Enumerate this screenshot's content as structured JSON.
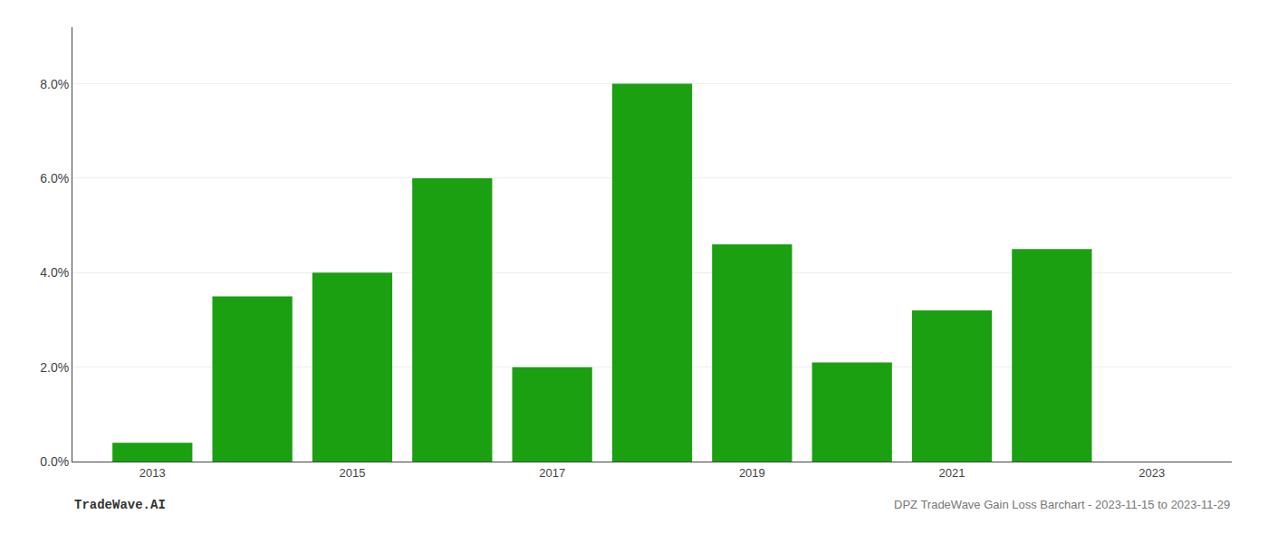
{
  "chart_data": {
    "type": "bar",
    "x": [
      2013,
      2014,
      2015,
      2016,
      2017,
      2018,
      2019,
      2020,
      2021,
      2022
    ],
    "values": [
      0.004,
      0.035,
      0.04,
      0.06,
      0.02,
      0.08,
      0.046,
      0.021,
      0.032,
      0.045
    ],
    "color": "#1aa010",
    "xlim": [
      2012.2,
      2023.8
    ],
    "xticks": [
      2013,
      2015,
      2017,
      2019,
      2021,
      2023
    ],
    "ylim": [
      0.0,
      0.092
    ],
    "yticks": [
      {
        "value": 0.0,
        "label": "0.0%"
      },
      {
        "value": 0.02,
        "label": "2.0%"
      },
      {
        "value": 0.04,
        "label": "4.0%"
      },
      {
        "value": 0.06,
        "label": "6.0%"
      },
      {
        "value": 0.08,
        "label": "8.0%"
      }
    ],
    "grid": true,
    "annotations": [
      "TradeWave.AI",
      "DPZ TradeWave Gain Loss Barchart - 2023-11-15 to 2023-11-29"
    ]
  }
}
